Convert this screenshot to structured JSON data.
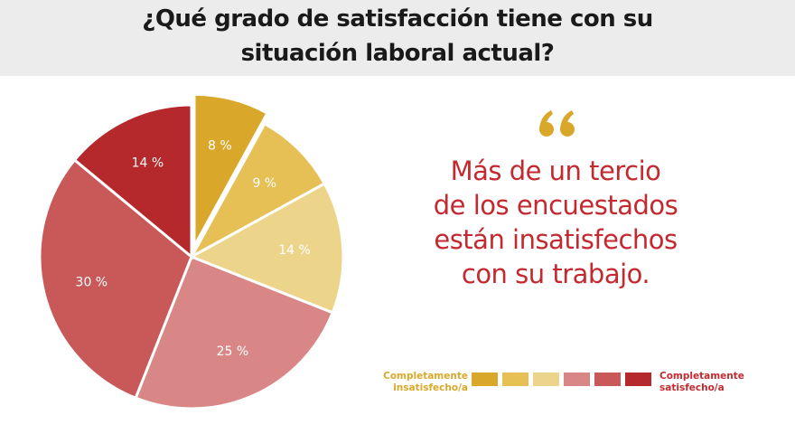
{
  "chart_data": {
    "type": "pie",
    "title": "¿Qué grado de satisfacción tiene con su situación laboral actual?",
    "annotation_lines": [
      "Más de un tercio",
      "de los encuestados",
      "están insatisfechos",
      "con su trabajo."
    ],
    "values": [
      8,
      9,
      14,
      25,
      30,
      14
    ],
    "value_labels": [
      "8 %",
      "9 %",
      "14 %",
      "25 %",
      "30 %",
      "14 %"
    ],
    "colors": [
      "#d9a82a",
      "#e6bf55",
      "#ecd58b",
      "#d98686",
      "#c95858",
      "#b5292c"
    ],
    "legend_low": "Completamente insatisfecho/a",
    "legend_high": "Completamente satisfecho/a"
  }
}
